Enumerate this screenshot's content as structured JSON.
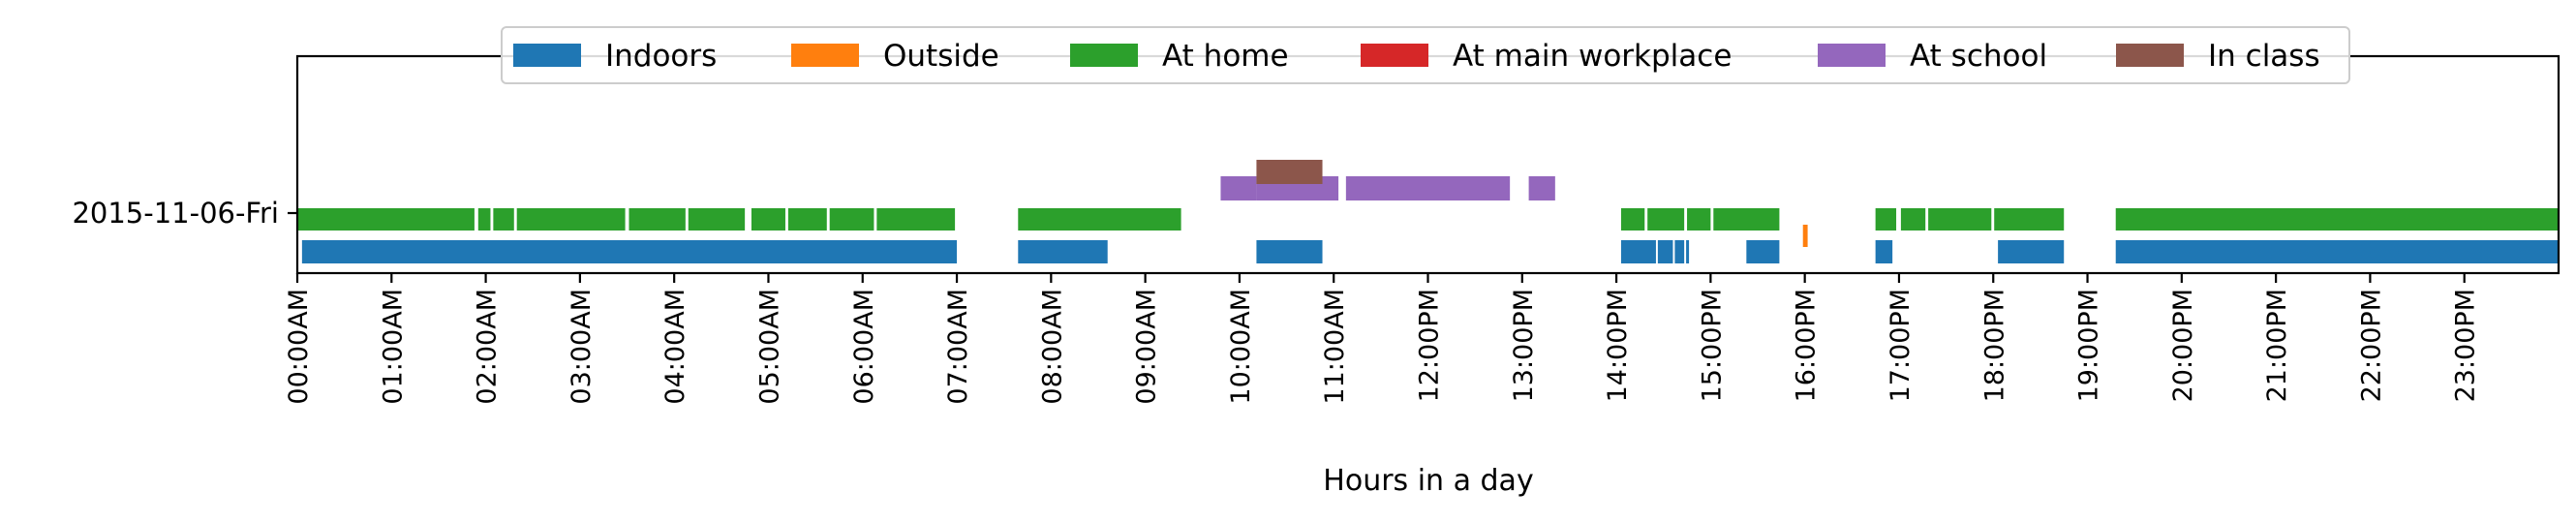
{
  "chart_data": {
    "type": "timeline",
    "title": "",
    "xlabel": "Hours in a day",
    "ylabel": "",
    "row_label": "2015-11-06-Fri",
    "xlim": [
      0,
      24
    ],
    "x_ticks": [
      "00:00AM",
      "01:00AM",
      "02:00AM",
      "03:00AM",
      "04:00AM",
      "05:00AM",
      "06:00AM",
      "07:00AM",
      "08:00AM",
      "09:00AM",
      "10:00AM",
      "11:00AM",
      "12:00PM",
      "13:00PM",
      "14:00PM",
      "15:00PM",
      "16:00PM",
      "17:00PM",
      "18:00PM",
      "19:00PM",
      "20:00PM",
      "21:00PM",
      "22:00PM",
      "23:00PM"
    ],
    "legend_position": "top-center",
    "grid": false,
    "series": [
      {
        "name": "Indoors",
        "color": "#1f77b4",
        "intervals": [
          [
            0.05,
            7.0
          ],
          [
            7.65,
            8.6
          ],
          [
            10.18,
            10.88
          ],
          [
            14.05,
            14.42
          ],
          [
            14.44,
            14.6
          ],
          [
            14.62,
            14.72
          ],
          [
            14.74,
            14.77
          ],
          [
            15.38,
            15.73
          ],
          [
            16.75,
            16.93
          ],
          [
            18.05,
            18.75
          ],
          [
            19.3,
            24.0
          ]
        ]
      },
      {
        "name": "Outside",
        "color": "#ff7f0e",
        "intervals": [
          [
            15.98,
            16.03
          ]
        ]
      },
      {
        "name": "At home",
        "color": "#2ca02c",
        "intervals": [
          [
            0.0,
            1.88
          ],
          [
            1.92,
            2.05
          ],
          [
            2.08,
            2.3
          ],
          [
            2.33,
            3.48
          ],
          [
            3.52,
            4.12
          ],
          [
            4.15,
            4.75
          ],
          [
            4.82,
            5.18
          ],
          [
            5.21,
            5.62
          ],
          [
            5.65,
            6.12
          ],
          [
            6.15,
            6.98
          ],
          [
            7.65,
            9.38
          ],
          [
            14.05,
            14.3
          ],
          [
            14.33,
            14.72
          ],
          [
            14.75,
            15.0
          ],
          [
            15.03,
            15.73
          ],
          [
            16.75,
            16.97
          ],
          [
            17.02,
            17.28
          ],
          [
            17.31,
            17.98
          ],
          [
            18.01,
            18.75
          ],
          [
            19.3,
            24.0
          ]
        ]
      },
      {
        "name": "At main workplace",
        "color": "#d62728",
        "intervals": []
      },
      {
        "name": "At school",
        "color": "#9467bd",
        "intervals": [
          [
            9.8,
            10.18
          ],
          [
            10.18,
            11.05
          ],
          [
            11.13,
            12.87
          ],
          [
            13.07,
            13.35
          ]
        ]
      },
      {
        "name": "In class",
        "color": "#8c564b",
        "intervals": [
          [
            10.18,
            10.88
          ]
        ]
      }
    ]
  }
}
